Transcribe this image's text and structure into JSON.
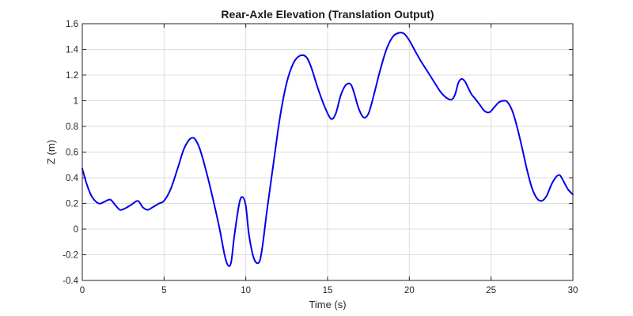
{
  "chart_data": {
    "type": "line",
    "title": "Rear-Axle Elevation (Translation Output)",
    "xlabel": "Time (s)",
    "ylabel": "Z (m)",
    "xlim": [
      0,
      30
    ],
    "ylim": [
      -0.4,
      1.6
    ],
    "xticks": [
      0,
      5,
      10,
      15,
      20,
      25,
      30
    ],
    "xtick_labels": [
      "0",
      "5",
      "10",
      "15",
      "20",
      "25",
      "30"
    ],
    "yticks": [
      -0.4,
      -0.2,
      0,
      0.2,
      0.4,
      0.6,
      0.8,
      1.0,
      1.2,
      1.4,
      1.6
    ],
    "ytick_labels": [
      "-0.4",
      "-0.2",
      "0",
      "0.2",
      "0.4",
      "0.6",
      "0.8",
      "1",
      "1.2",
      "1.4",
      "1.6"
    ],
    "grid": true,
    "series": [
      {
        "color": "#0000ee",
        "x": [
          0,
          0.3,
          0.6,
          1.0,
          1.3,
          1.7,
          2.0,
          2.3,
          2.6,
          3.0,
          3.4,
          3.7,
          4.0,
          4.3,
          4.7,
          5.0,
          5.4,
          5.8,
          6.2,
          6.5,
          6.7,
          6.9,
          7.2,
          7.6,
          8.0,
          8.4,
          8.7,
          8.9,
          9.1,
          9.3,
          9.6,
          9.8,
          10.0,
          10.2,
          10.5,
          10.8,
          11.0,
          11.3,
          11.7,
          12.1,
          12.5,
          12.9,
          13.3,
          13.7,
          14.0,
          14.4,
          14.8,
          15.2,
          15.5,
          15.8,
          16.1,
          16.4,
          16.6,
          16.9,
          17.2,
          17.5,
          17.8,
          18.2,
          18.6,
          19.0,
          19.4,
          19.7,
          20.0,
          20.3,
          20.7,
          21.1,
          21.5,
          21.9,
          22.3,
          22.6,
          22.8,
          23.0,
          23.2,
          23.4,
          23.6,
          23.8,
          24.0,
          24.3,
          24.6,
          24.9,
          25.2,
          25.5,
          25.8,
          26.0,
          26.3,
          26.6,
          26.9,
          27.2,
          27.5,
          27.8,
          28.1,
          28.4,
          28.7,
          29.0,
          29.2,
          29.4,
          29.7,
          30.0
        ],
        "y": [
          0.47,
          0.34,
          0.25,
          0.2,
          0.21,
          0.23,
          0.19,
          0.15,
          0.16,
          0.19,
          0.22,
          0.17,
          0.15,
          0.17,
          0.2,
          0.22,
          0.31,
          0.46,
          0.62,
          0.69,
          0.71,
          0.7,
          0.62,
          0.44,
          0.23,
          0.0,
          -0.2,
          -0.28,
          -0.26,
          -0.05,
          0.2,
          0.25,
          0.18,
          -0.05,
          -0.23,
          -0.26,
          -0.15,
          0.15,
          0.52,
          0.88,
          1.14,
          1.29,
          1.35,
          1.34,
          1.26,
          1.1,
          0.96,
          0.86,
          0.9,
          1.04,
          1.12,
          1.13,
          1.07,
          0.94,
          0.87,
          0.9,
          1.03,
          1.23,
          1.4,
          1.5,
          1.53,
          1.52,
          1.47,
          1.4,
          1.31,
          1.23,
          1.15,
          1.07,
          1.02,
          1.01,
          1.05,
          1.14,
          1.17,
          1.15,
          1.1,
          1.05,
          1.02,
          0.97,
          0.92,
          0.91,
          0.95,
          0.99,
          1.0,
          0.99,
          0.92,
          0.79,
          0.63,
          0.46,
          0.32,
          0.24,
          0.22,
          0.26,
          0.35,
          0.41,
          0.42,
          0.38,
          0.31,
          0.27
        ]
      }
    ]
  }
}
